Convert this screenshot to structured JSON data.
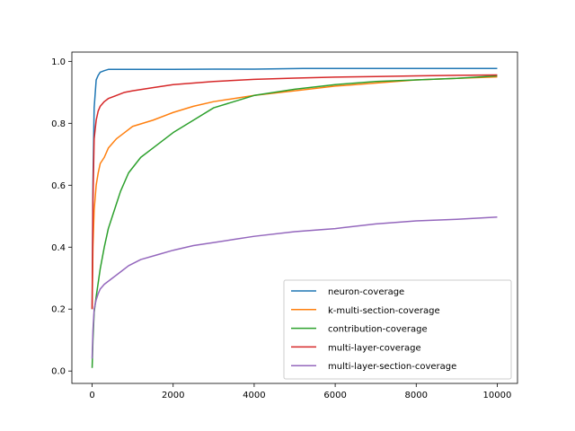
{
  "chart_data": {
    "type": "line",
    "title": "",
    "xlabel": "",
    "ylabel": "",
    "xlim": [
      -500,
      10500
    ],
    "ylim": [
      -0.04,
      1.03
    ],
    "x_ticks": [
      0,
      2000,
      4000,
      6000,
      8000,
      10000
    ],
    "x_tick_labels": [
      "0",
      "2000",
      "4000",
      "6000",
      "8000",
      "10000"
    ],
    "y_ticks": [
      0.0,
      0.2,
      0.4,
      0.6,
      0.8,
      1.0
    ],
    "y_tick_labels": [
      "0.0",
      "0.2",
      "0.4",
      "0.6",
      "0.8",
      "1.0"
    ],
    "grid": false,
    "legend_position": "lower-right",
    "series": [
      {
        "name": "neuron-coverage",
        "color": "#1f77b4",
        "x": [
          0,
          20,
          50,
          100,
          150,
          200,
          300,
          400,
          600,
          1000,
          2000,
          3000,
          4000,
          5200,
          6000,
          8000,
          10000
        ],
        "y": [
          0.2,
          0.6,
          0.85,
          0.94,
          0.955,
          0.965,
          0.97,
          0.974,
          0.974,
          0.974,
          0.974,
          0.975,
          0.975,
          0.977,
          0.977,
          0.977,
          0.977
        ]
      },
      {
        "name": "k-multi-section-coverage",
        "color": "#ff7f0e",
        "x": [
          0,
          20,
          50,
          100,
          150,
          200,
          300,
          400,
          600,
          800,
          1000,
          1500,
          2000,
          2500,
          3000,
          3500,
          4000,
          5000,
          6000,
          7000,
          8000,
          9000,
          10000
        ],
        "y": [
          0.2,
          0.4,
          0.52,
          0.6,
          0.64,
          0.67,
          0.69,
          0.72,
          0.75,
          0.77,
          0.79,
          0.81,
          0.835,
          0.855,
          0.87,
          0.88,
          0.89,
          0.905,
          0.92,
          0.93,
          0.94,
          0.945,
          0.95
        ]
      },
      {
        "name": "contribution-coverage",
        "color": "#2ca02c",
        "x": [
          0,
          20,
          50,
          100,
          200,
          300,
          400,
          500,
          700,
          900,
          1200,
          1500,
          2000,
          2500,
          3000,
          3500,
          4000,
          5000,
          6000,
          7000,
          8000,
          9000,
          10000
        ],
        "y": [
          0.01,
          0.1,
          0.19,
          0.24,
          0.33,
          0.4,
          0.46,
          0.5,
          0.58,
          0.64,
          0.69,
          0.72,
          0.77,
          0.81,
          0.85,
          0.87,
          0.89,
          0.91,
          0.925,
          0.935,
          0.94,
          0.945,
          0.953
        ]
      },
      {
        "name": "multi-layer-coverage",
        "color": "#d62728",
        "x": [
          0,
          20,
          50,
          100,
          150,
          200,
          300,
          400,
          600,
          800,
          1000,
          1500,
          2000,
          3000,
          4000,
          5000,
          6000,
          7000,
          8000,
          9000,
          10000
        ],
        "y": [
          0.2,
          0.55,
          0.75,
          0.81,
          0.84,
          0.855,
          0.87,
          0.88,
          0.89,
          0.9,
          0.905,
          0.915,
          0.925,
          0.935,
          0.942,
          0.946,
          0.949,
          0.951,
          0.953,
          0.955,
          0.956
        ]
      },
      {
        "name": "multi-layer-section-coverage",
        "color": "#9467bd",
        "x": [
          0,
          20,
          50,
          100,
          150,
          200,
          300,
          500,
          700,
          900,
          1200,
          1600,
          2000,
          2500,
          3000,
          3500,
          4000,
          5000,
          6000,
          7000,
          8000,
          9000,
          10000
        ],
        "y": [
          0.04,
          0.13,
          0.2,
          0.23,
          0.25,
          0.265,
          0.28,
          0.3,
          0.32,
          0.34,
          0.36,
          0.375,
          0.39,
          0.405,
          0.415,
          0.425,
          0.435,
          0.45,
          0.46,
          0.475,
          0.485,
          0.49,
          0.497
        ]
      }
    ]
  }
}
